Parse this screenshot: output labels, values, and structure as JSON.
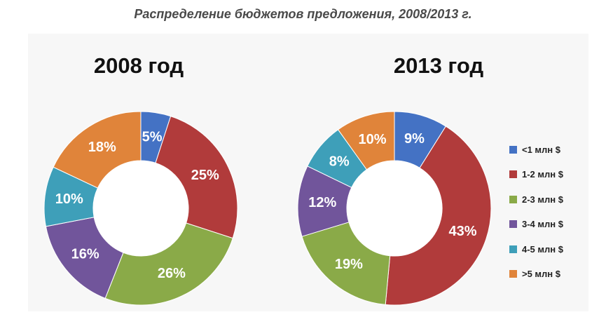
{
  "page_title": "Распределение бюджетов предложения, 2008/2013 г.",
  "legend": {
    "items": [
      {
        "label": "<1 млн $",
        "color": "#4472c4"
      },
      {
        "label": "1-2 млн $",
        "color": "#b13b3b"
      },
      {
        "label": "2-3 млн $",
        "color": "#8aaa48"
      },
      {
        "label": "3-4 млн $",
        "color": "#71559b"
      },
      {
        "label": "4-5 млн $",
        "color": "#3e9fb9"
      },
      {
        "label": ">5 млн $",
        "color": "#e0843a"
      }
    ]
  },
  "chart_data": [
    {
      "type": "pie",
      "title": "2008 год",
      "categories": [
        "<1 млн $",
        "1-2 млн $",
        "2-3 млн $",
        "3-4 млн $",
        "4-5 млн $",
        ">5 млн $"
      ],
      "values": [
        5,
        25,
        26,
        16,
        10,
        18
      ],
      "labels": [
        "5%",
        "25%",
        "26%",
        "16%",
        "10%",
        "18%"
      ],
      "colors": [
        "#4472c4",
        "#b13b3b",
        "#8aaa48",
        "#71559b",
        "#3e9fb9",
        "#e0843a"
      ],
      "donut": true
    },
    {
      "type": "pie",
      "title": "2013 год",
      "categories": [
        "<1 млн $",
        "1-2 млн $",
        "2-3 млн $",
        "3-4 млн $",
        "4-5 млн $",
        ">5 млн $"
      ],
      "values": [
        9,
        43,
        19,
        12,
        8,
        10
      ],
      "labels": [
        "9%",
        "43%",
        "19%",
        "12%",
        "8%",
        "10%"
      ],
      "colors": [
        "#4472c4",
        "#b13b3b",
        "#8aaa48",
        "#71559b",
        "#3e9fb9",
        "#e0843a"
      ],
      "donut": true
    }
  ]
}
